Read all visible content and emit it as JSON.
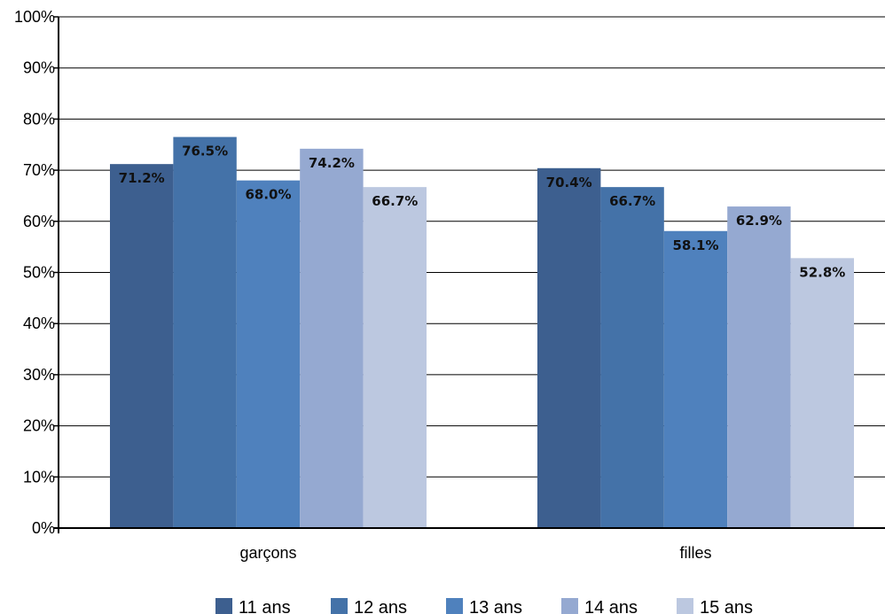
{
  "chart_data": {
    "type": "bar",
    "categories": [
      "garçons",
      "filles"
    ],
    "series": [
      {
        "name": "11 ans",
        "values": [
          71.2,
          70.4
        ],
        "labels": [
          "71.2%",
          "70.4%"
        ],
        "color": "#3d5f8f"
      },
      {
        "name": "12 ans",
        "values": [
          76.5,
          66.7
        ],
        "labels": [
          "76.5%",
          "66.7%"
        ],
        "color": "#4472a8"
      },
      {
        "name": "13 ans",
        "values": [
          68.0,
          58.1
        ],
        "labels": [
          "68.0%",
          "58.1%"
        ],
        "color": "#4f81bd"
      },
      {
        "name": "14 ans",
        "values": [
          74.2,
          62.9
        ],
        "labels": [
          "74.2%",
          "62.9%"
        ],
        "color": "#95a9d1"
      },
      {
        "name": "15 ans",
        "values": [
          66.7,
          52.8
        ],
        "labels": [
          "66.7%",
          "52.8%"
        ],
        "color": "#bcc8e0"
      }
    ],
    "ylim": [
      0,
      100
    ],
    "yticks": [
      "0%",
      "10%",
      "20%",
      "30%",
      "40%",
      "50%",
      "60%",
      "70%",
      "80%",
      "90%",
      "100%"
    ],
    "grid": true,
    "legend_position": "bottom"
  }
}
